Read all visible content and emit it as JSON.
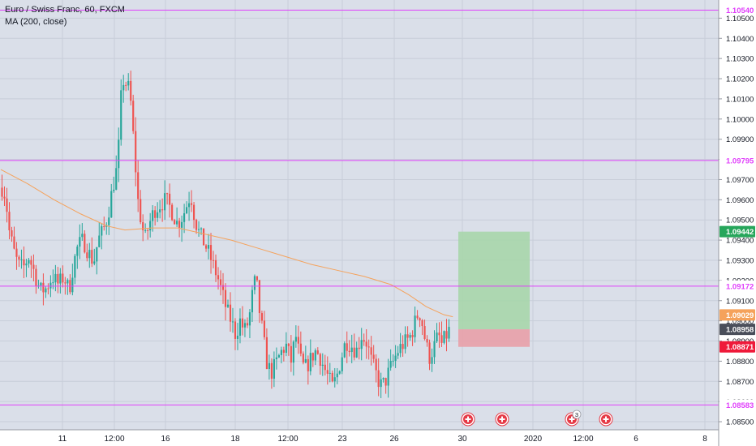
{
  "legend": {
    "symbol": "Euro / Swiss Franc, 60, FXCM",
    "indicator": "MA (200, close)"
  },
  "colors": {
    "background": "#dadfe9",
    "grid": "#c8ced9",
    "up": "#26a69a",
    "down": "#ef5350",
    "ma": "#f5a25b",
    "level": "#e040fb",
    "target_zone": "#a5d6a7",
    "stop_zone": "#e8a0a8",
    "last_price_badge": "#4a4e5a",
    "ma_badge": "#f5a25b",
    "target_badge": "#26a65b",
    "stop_badge": "#ef1a3a",
    "axis_text": "#131722",
    "event_icon": "#e53945"
  },
  "chart_data": {
    "type": "candlestick",
    "title": "Euro / Swiss Franc, 60, FXCM",
    "ylim": [
      1.0846,
      1.1059
    ],
    "y_ticks": [
      "1.10500",
      "1.10400",
      "1.10300",
      "1.10200",
      "1.10100",
      "1.10000",
      "1.09900",
      "1.09800",
      "1.09700",
      "1.09600",
      "1.09500",
      "1.09400",
      "1.09300",
      "1.09200",
      "1.09100",
      "1.09000",
      "1.08900",
      "1.08800",
      "1.08700",
      "1.08600",
      "1.08500"
    ],
    "x_tick_labels": [
      "11",
      "12:00",
      "16",
      "18",
      "12:00",
      "23",
      "26",
      "30",
      "2020",
      "12:00",
      "6",
      "8"
    ],
    "level_lines": [
      {
        "value": 1.1054,
        "label": "1.10540"
      },
      {
        "value": 1.09795,
        "label": "1.09795"
      },
      {
        "value": 1.09172,
        "label": "1.09172"
      },
      {
        "value": 1.08583,
        "label": "1.08583"
      }
    ],
    "price_badges": [
      {
        "value": 1.09442,
        "label": "1.09442",
        "color_key": "target_badge"
      },
      {
        "value": 1.09029,
        "label": "1.09029",
        "color_key": "ma_badge"
      },
      {
        "value": 1.08958,
        "label": "1.08958",
        "color_key": "last_price_badge"
      },
      {
        "value": 1.08871,
        "label": "1.08871",
        "color_key": "stop_badge"
      }
    ],
    "position": {
      "side": "long",
      "entry": 1.08958,
      "target": 1.09442,
      "stop": 1.08871
    },
    "close_path": [
      [
        0,
        1.0966
      ],
      [
        0.4,
        1.0962
      ],
      [
        0.8,
        1.0945
      ],
      [
        1.3,
        1.0935
      ],
      [
        1.8,
        1.0928
      ],
      [
        2.4,
        1.0926
      ],
      [
        3.0,
        1.0932
      ],
      [
        3.6,
        1.0925
      ],
      [
        4.3,
        1.0915
      ],
      [
        5.0,
        1.0916
      ],
      [
        5.7,
        1.0922
      ],
      [
        6.4,
        1.0918
      ],
      [
        7.0,
        1.0922
      ],
      [
        7.6,
        1.0915
      ],
      [
        8.1,
        1.0928
      ],
      [
        8.6,
        1.0937
      ],
      [
        9.2,
        1.094
      ],
      [
        9.8,
        1.0934
      ],
      [
        10.4,
        1.0929
      ],
      [
        10.9,
        1.094
      ],
      [
        11.5,
        1.0945
      ],
      [
        12.0,
        1.0952
      ],
      [
        12.5,
        1.0965
      ],
      [
        13.0,
        1.0975
      ],
      [
        13.3,
        1.099
      ],
      [
        13.6,
        1.102
      ],
      [
        14.0,
        1.1018
      ],
      [
        14.5,
        1.1014
      ],
      [
        15.0,
        1.0985
      ],
      [
        15.4,
        1.096
      ],
      [
        15.8,
        1.0949
      ],
      [
        16.2,
        1.094
      ],
      [
        16.7,
        1.0948
      ],
      [
        17.3,
        1.0955
      ],
      [
        18.0,
        1.0958
      ],
      [
        18.6,
        1.096
      ],
      [
        19.2,
        1.0955
      ],
      [
        19.9,
        1.0948
      ],
      [
        20.5,
        1.0952
      ],
      [
        21.0,
        1.0958
      ],
      [
        21.4,
        1.0963
      ],
      [
        21.9,
        1.095
      ],
      [
        22.4,
        1.0943
      ],
      [
        23.0,
        1.0938
      ],
      [
        23.5,
        1.0933
      ],
      [
        24.0,
        1.0927
      ],
      [
        24.5,
        1.0921
      ],
      [
        25.0,
        1.0913
      ],
      [
        25.5,
        1.0905
      ],
      [
        26.0,
        1.09
      ],
      [
        26.5,
        1.0893
      ],
      [
        27.0,
        1.09
      ],
      [
        27.5,
        1.0895
      ],
      [
        28.0,
        1.09
      ],
      [
        28.4,
        1.0913
      ],
      [
        28.8,
        1.0922
      ],
      [
        29.2,
        1.0905
      ],
      [
        29.6,
        1.0893
      ],
      [
        30.0,
        1.088
      ],
      [
        30.5,
        1.0874
      ],
      [
        31.0,
        1.0878
      ],
      [
        31.6,
        1.0884
      ],
      [
        32.2,
        1.0888
      ],
      [
        32.8,
        1.088
      ],
      [
        33.3,
        1.0893
      ],
      [
        33.8,
        1.0881
      ],
      [
        34.3,
        1.0876
      ],
      [
        34.9,
        1.088
      ],
      [
        35.5,
        1.0885
      ],
      [
        36.0,
        1.0883
      ],
      [
        36.5,
        1.0877
      ],
      [
        37.0,
        1.0872
      ],
      [
        37.5,
        1.0867
      ],
      [
        38.0,
        1.0873
      ],
      [
        38.5,
        1.0882
      ],
      [
        39.0,
        1.089
      ],
      [
        39.6,
        1.0888
      ],
      [
        40.2,
        1.0885
      ],
      [
        40.8,
        1.0893
      ],
      [
        41.4,
        1.0889
      ],
      [
        41.9,
        1.088
      ],
      [
        42.4,
        1.0874
      ],
      [
        42.9,
        1.0868
      ],
      [
        43.4,
        1.0869
      ],
      [
        43.9,
        1.0875
      ],
      [
        44.4,
        1.088
      ],
      [
        44.9,
        1.0885
      ],
      [
        45.4,
        1.0888
      ],
      [
        45.9,
        1.089
      ],
      [
        46.4,
        1.0893
      ],
      [
        46.9,
        1.09
      ],
      [
        47.3,
        1.0905
      ],
      [
        47.7,
        1.0898
      ],
      [
        48.1,
        1.0888
      ],
      [
        48.5,
        1.0882
      ],
      [
        49.0,
        1.0887
      ],
      [
        49.5,
        1.0893
      ],
      [
        49.9,
        1.0888
      ],
      [
        50.3,
        1.0892
      ],
      [
        50.7,
        1.0895
      ]
    ],
    "ma_path": [
      [
        0,
        1.0975
      ],
      [
        3,
        1.0968
      ],
      [
        6,
        1.096
      ],
      [
        9,
        1.0953
      ],
      [
        12,
        1.0947
      ],
      [
        14,
        1.0945
      ],
      [
        17,
        1.0946
      ],
      [
        20,
        1.0946
      ],
      [
        23,
        1.0943
      ],
      [
        26,
        1.094
      ],
      [
        29,
        1.0936
      ],
      [
        32,
        1.0932
      ],
      [
        35,
        1.0928
      ],
      [
        38,
        1.0925
      ],
      [
        41,
        1.0922
      ],
      [
        44,
        1.0918
      ],
      [
        46,
        1.0913
      ],
      [
        48,
        1.0907
      ],
      [
        50,
        1.0903
      ],
      [
        51,
        1.0902
      ]
    ],
    "events": [
      {
        "slot": 0,
        "badge": ""
      },
      {
        "slot": 1,
        "badge": ""
      },
      {
        "slot": 2,
        "badge": "3"
      },
      {
        "slot": 3,
        "badge": ""
      }
    ]
  }
}
